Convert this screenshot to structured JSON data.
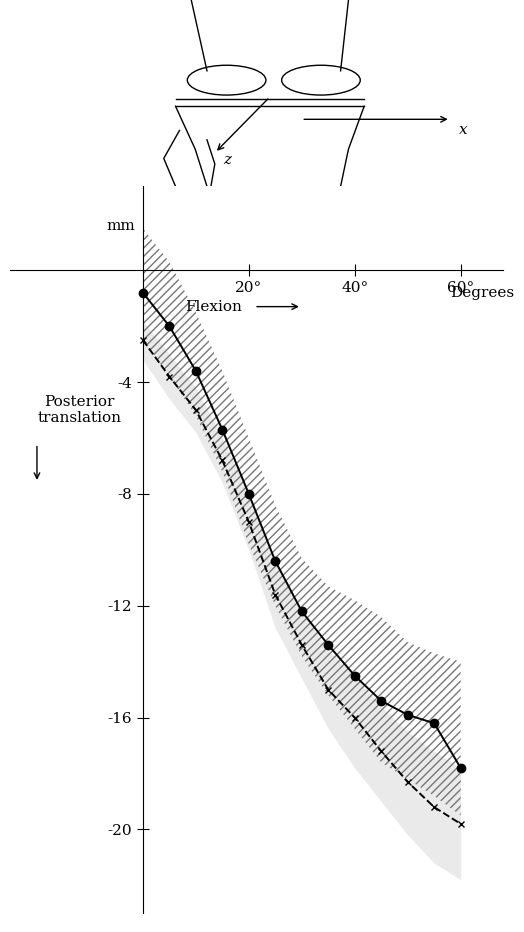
{
  "chart_data": {
    "type": "line",
    "x_label": "Flexion",
    "x_unit_label": "Degrees",
    "y_unit_label": "mm",
    "y_label": "Posterior translation",
    "diagram_labels": [
      "x",
      "z"
    ],
    "x": [
      0,
      5,
      10,
      15,
      20,
      25,
      30,
      35,
      40,
      45,
      50,
      55,
      60
    ],
    "xlim": [
      -25,
      68
    ],
    "xticks": [
      {
        "value": 20,
        "label": "20°"
      },
      {
        "value": 40,
        "label": "40°"
      },
      {
        "value": 60,
        "label": "60°"
      }
    ],
    "ylim": [
      -23,
      3
    ],
    "yticks": [
      -4,
      -8,
      -12,
      -16,
      -20
    ],
    "grid": false,
    "series": [
      {
        "color": "#000000",
        "marker": "o",
        "line_style": "solid",
        "values": [
          -0.8,
          -2.0,
          -3.6,
          -5.7,
          -8.0,
          -10.4,
          -12.2,
          -13.4,
          -14.5,
          -15.4,
          -15.9,
          -16.2,
          -17.8
        ],
        "band_upper": [
          1.5,
          0.3,
          -1.5,
          -3.6,
          -6.0,
          -8.4,
          -10.3,
          -11.3,
          -11.8,
          -12.4,
          -13.3,
          -13.7,
          -14.0
        ],
        "band_lower": [
          -2.5,
          -3.8,
          -5.2,
          -7.2,
          -9.8,
          -12.0,
          -13.8,
          -15.2,
          -16.4,
          -17.6,
          -18.2,
          -18.8,
          -19.5
        ]
      },
      {
        "color": "#000000",
        "marker": "x",
        "line_style": "dashed",
        "values": [
          -2.5,
          -3.8,
          -5.0,
          -6.8,
          -9.0,
          -11.6,
          -13.4,
          -15.0,
          -16.0,
          -17.2,
          -18.3,
          -19.2,
          -19.8
        ],
        "band_upper": [
          -1.8,
          -3.0,
          -4.2,
          -6.0,
          -8.0,
          -10.4,
          -12.2,
          -13.6,
          -14.5,
          -15.6,
          -16.5,
          -17.2,
          -17.8
        ],
        "band_lower": [
          -3.2,
          -4.6,
          -5.8,
          -7.6,
          -10.0,
          -12.8,
          -14.6,
          -16.4,
          -17.8,
          -19.0,
          -20.2,
          -21.2,
          -21.8
        ]
      }
    ]
  }
}
